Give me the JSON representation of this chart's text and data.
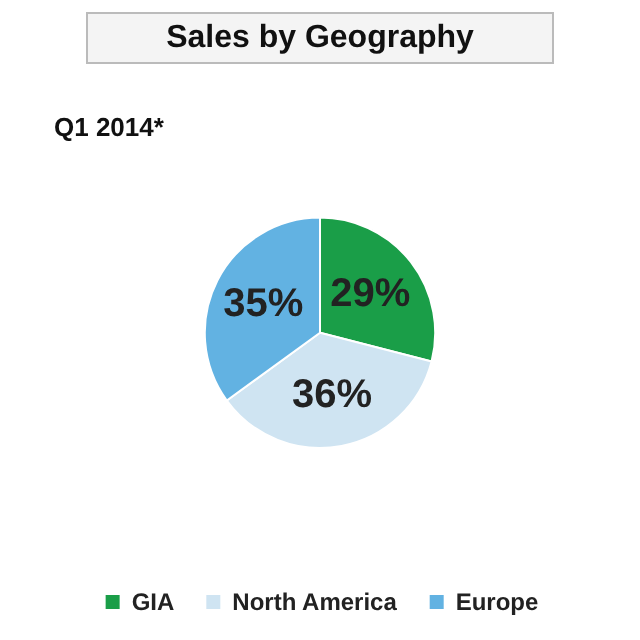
{
  "chart_data": {
    "type": "pie",
    "title": "Sales by Geography",
    "subtitle": "Q1 2014*",
    "categories": [
      "GIA",
      "North America",
      "Europe"
    ],
    "values": [
      29,
      36,
      35
    ],
    "colors": [
      "#1a9e48",
      "#cfe4f2",
      "#62b2e2"
    ],
    "value_labels": [
      "29%",
      "36%",
      "35%"
    ],
    "legend": "bottom"
  }
}
